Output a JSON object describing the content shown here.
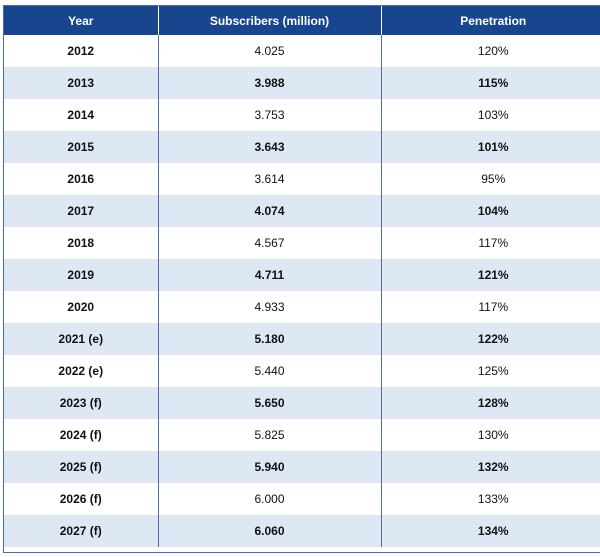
{
  "chart_data": {
    "type": "table",
    "columns": [
      "Year",
      "Subscribers (million)",
      "Penetration"
    ],
    "rows": [
      [
        "2012",
        "4.025",
        "120%"
      ],
      [
        "2013",
        "3.988",
        "115%"
      ],
      [
        "2014",
        "3.753",
        "103%"
      ],
      [
        "2015",
        "3.643",
        "101%"
      ],
      [
        "2016",
        "3.614",
        "95%"
      ],
      [
        "2017",
        "4.074",
        "104%"
      ],
      [
        "2018",
        "4.567",
        "117%"
      ],
      [
        "2019",
        "4.711",
        "121%"
      ],
      [
        "2020",
        "4.933",
        "117%"
      ],
      [
        "2021 (e)",
        "5.180",
        "122%"
      ],
      [
        "2022 (e)",
        "5.440",
        "125%"
      ],
      [
        "2023 (f)",
        "5.650",
        "128%"
      ],
      [
        "2024 (f)",
        "5.825",
        "130%"
      ],
      [
        "2025 (f)",
        "5.940",
        "132%"
      ],
      [
        "2026 (f)",
        "6.000",
        "133%"
      ],
      [
        "2027 (f)",
        "6.060",
        "134%"
      ]
    ],
    "colors": {
      "header_bg": "#17468f",
      "header_text": "#ffffff",
      "stripe_bg": "#dde8f4",
      "border": "#4a6bb0"
    }
  }
}
